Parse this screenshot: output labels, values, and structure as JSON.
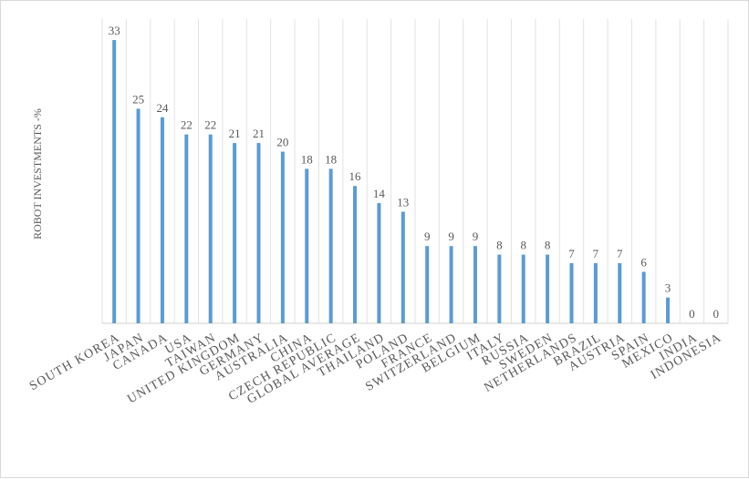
{
  "chart_data": {
    "type": "bar",
    "title": "",
    "xlabel": "",
    "ylabel": "ROBOT INVESTMENTS  -%",
    "ylim": [
      0,
      33
    ],
    "grid": "vertical",
    "legend": "none",
    "bar_color": "#5b9bd5",
    "categories": [
      "SOUTH KOREA",
      "JAPAN",
      "CANADA",
      "USA",
      "TAIWAN",
      "UNITED KINGDOM",
      "GERMANY",
      "AUSTRALIA",
      "CHINA",
      "CZECH REPUBLIC",
      "GLOBAL AVERAGE",
      "THAILAND",
      "POLAND",
      "FRANCE",
      "SWITZERLAND",
      "BELGIUM",
      "ITALY",
      "RUSSIA",
      "SWEDEN",
      "NETHERLANDS",
      "BRAZIL",
      "AUSTRIA",
      "SPAIN",
      "MEXICO",
      "INDIA",
      "INDONESIA"
    ],
    "values": [
      33,
      25,
      24,
      22,
      22,
      21,
      21,
      20,
      18,
      18,
      16,
      14,
      13,
      9,
      9,
      9,
      8,
      8,
      8,
      7,
      7,
      7,
      6,
      3,
      0,
      0
    ]
  }
}
